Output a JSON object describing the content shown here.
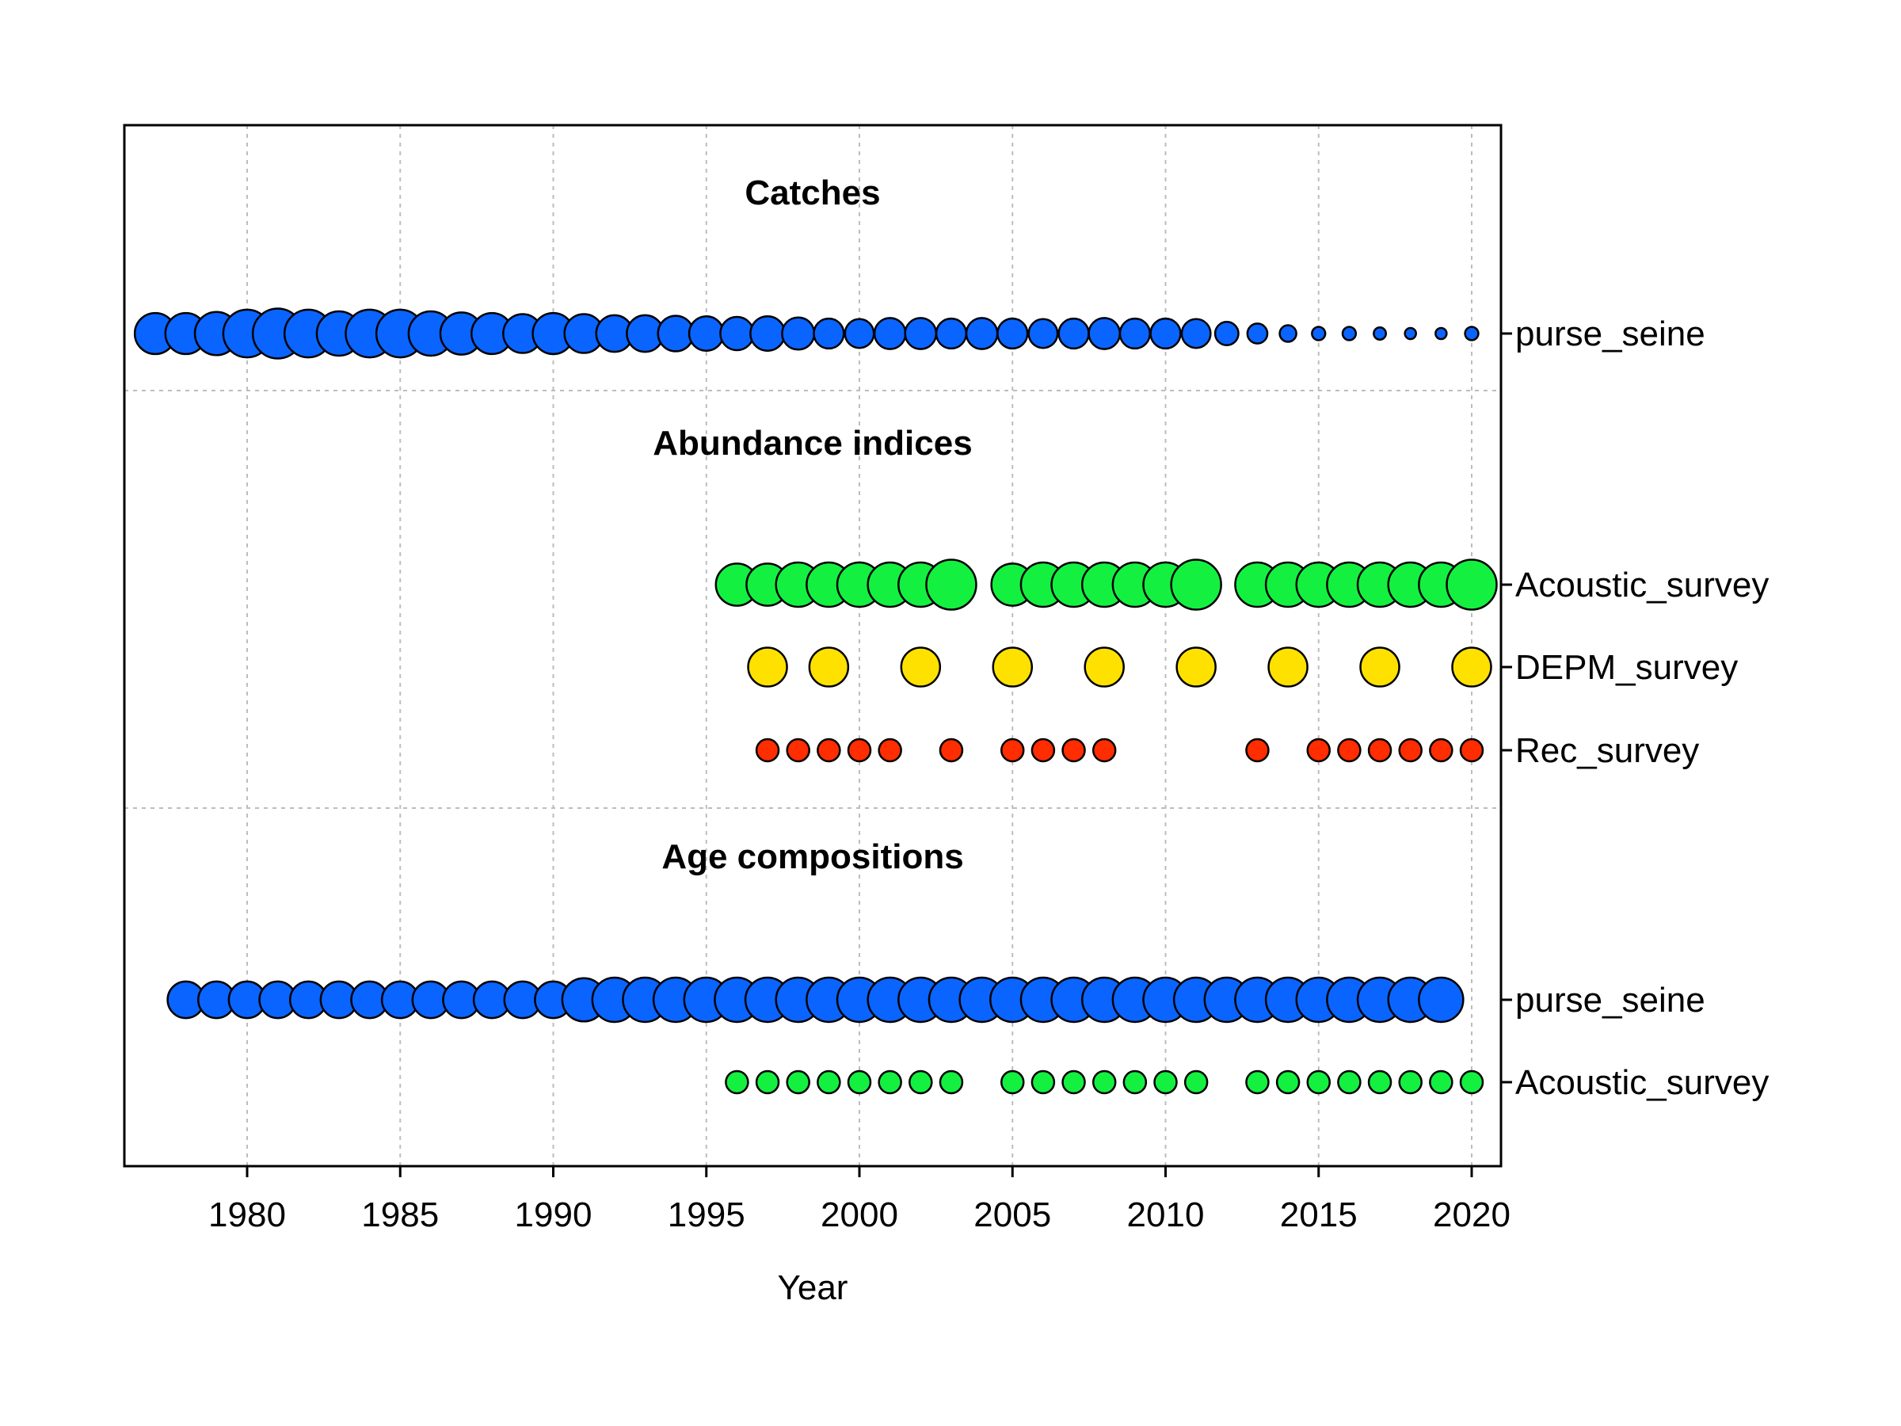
{
  "chart_data": {
    "type": "scatter",
    "xlabel": "Year",
    "xlim": [
      1976,
      2021
    ],
    "x_ticks": [
      1980,
      1985,
      1990,
      1995,
      2000,
      2005,
      2010,
      2015,
      2020
    ],
    "grid": true,
    "colors": {
      "blue": "#0a64ff",
      "green": "#14f040",
      "yellow": "#ffe100",
      "red": "#ff2d00"
    },
    "sections": [
      {
        "title": "Catches",
        "rows": [
          {
            "label": "purse_seine",
            "color": "#0a64ff",
            "points": [
              {
                "year": 1977,
                "size": 0.74
              },
              {
                "year": 1978,
                "size": 0.74
              },
              {
                "year": 1979,
                "size": 0.78
              },
              {
                "year": 1980,
                "size": 0.86
              },
              {
                "year": 1981,
                "size": 0.9
              },
              {
                "year": 1982,
                "size": 0.86
              },
              {
                "year": 1983,
                "size": 0.8
              },
              {
                "year": 1984,
                "size": 0.86
              },
              {
                "year": 1985,
                "size": 0.86
              },
              {
                "year": 1986,
                "size": 0.8
              },
              {
                "year": 1987,
                "size": 0.76
              },
              {
                "year": 1988,
                "size": 0.74
              },
              {
                "year": 1989,
                "size": 0.7
              },
              {
                "year": 1990,
                "size": 0.74
              },
              {
                "year": 1991,
                "size": 0.7
              },
              {
                "year": 1992,
                "size": 0.66
              },
              {
                "year": 1993,
                "size": 0.66
              },
              {
                "year": 1994,
                "size": 0.64
              },
              {
                "year": 1995,
                "size": 0.62
              },
              {
                "year": 1996,
                "size": 0.6
              },
              {
                "year": 1997,
                "size": 0.62
              },
              {
                "year": 1998,
                "size": 0.58
              },
              {
                "year": 1999,
                "size": 0.54
              },
              {
                "year": 2000,
                "size": 0.52
              },
              {
                "year": 2001,
                "size": 0.56
              },
              {
                "year": 2002,
                "size": 0.56
              },
              {
                "year": 2003,
                "size": 0.54
              },
              {
                "year": 2004,
                "size": 0.56
              },
              {
                "year": 2005,
                "size": 0.54
              },
              {
                "year": 2006,
                "size": 0.52
              },
              {
                "year": 2007,
                "size": 0.54
              },
              {
                "year": 2008,
                "size": 0.56
              },
              {
                "year": 2009,
                "size": 0.54
              },
              {
                "year": 2010,
                "size": 0.54
              },
              {
                "year": 2011,
                "size": 0.52
              },
              {
                "year": 2012,
                "size": 0.42
              },
              {
                "year": 2013,
                "size": 0.36
              },
              {
                "year": 2014,
                "size": 0.3
              },
              {
                "year": 2015,
                "size": 0.24
              },
              {
                "year": 2016,
                "size": 0.24
              },
              {
                "year": 2017,
                "size": 0.22
              },
              {
                "year": 2018,
                "size": 0.2
              },
              {
                "year": 2019,
                "size": 0.2
              },
              {
                "year": 2020,
                "size": 0.24
              }
            ]
          }
        ]
      },
      {
        "title": "Abundance indices",
        "rows": [
          {
            "label": "Acoustic_survey",
            "color": "#14f040",
            "points": [
              {
                "year": 1996,
                "size": 0.76
              },
              {
                "year": 1997,
                "size": 0.76
              },
              {
                "year": 1998,
                "size": 0.8
              },
              {
                "year": 1999,
                "size": 0.8
              },
              {
                "year": 2000,
                "size": 0.8
              },
              {
                "year": 2001,
                "size": 0.8
              },
              {
                "year": 2002,
                "size": 0.8
              },
              {
                "year": 2003,
                "size": 0.9
              },
              {
                "year": 2005,
                "size": 0.76
              },
              {
                "year": 2006,
                "size": 0.8
              },
              {
                "year": 2007,
                "size": 0.8
              },
              {
                "year": 2008,
                "size": 0.8
              },
              {
                "year": 2009,
                "size": 0.8
              },
              {
                "year": 2010,
                "size": 0.8
              },
              {
                "year": 2011,
                "size": 0.9
              },
              {
                "year": 2013,
                "size": 0.8
              },
              {
                "year": 2014,
                "size": 0.8
              },
              {
                "year": 2015,
                "size": 0.8
              },
              {
                "year": 2016,
                "size": 0.8
              },
              {
                "year": 2017,
                "size": 0.8
              },
              {
                "year": 2018,
                "size": 0.8
              },
              {
                "year": 2019,
                "size": 0.8
              },
              {
                "year": 2020,
                "size": 0.9
              }
            ]
          },
          {
            "label": "DEPM_survey",
            "color": "#ffe100",
            "points": [
              {
                "year": 1997,
                "size": 0.7
              },
              {
                "year": 1999,
                "size": 0.7
              },
              {
                "year": 2002,
                "size": 0.7
              },
              {
                "year": 2005,
                "size": 0.7
              },
              {
                "year": 2008,
                "size": 0.7
              },
              {
                "year": 2011,
                "size": 0.7
              },
              {
                "year": 2014,
                "size": 0.7
              },
              {
                "year": 2017,
                "size": 0.7
              },
              {
                "year": 2020,
                "size": 0.7
              }
            ]
          },
          {
            "label": "Rec_survey",
            "color": "#ff2d00",
            "points": [
              {
                "year": 1997,
                "size": 0.4
              },
              {
                "year": 1998,
                "size": 0.4
              },
              {
                "year": 1999,
                "size": 0.4
              },
              {
                "year": 2000,
                "size": 0.4
              },
              {
                "year": 2001,
                "size": 0.4
              },
              {
                "year": 2003,
                "size": 0.4
              },
              {
                "year": 2005,
                "size": 0.4
              },
              {
                "year": 2006,
                "size": 0.4
              },
              {
                "year": 2007,
                "size": 0.4
              },
              {
                "year": 2008,
                "size": 0.4
              },
              {
                "year": 2013,
                "size": 0.4
              },
              {
                "year": 2015,
                "size": 0.4
              },
              {
                "year": 2016,
                "size": 0.4
              },
              {
                "year": 2017,
                "size": 0.4
              },
              {
                "year": 2018,
                "size": 0.4
              },
              {
                "year": 2019,
                "size": 0.4
              },
              {
                "year": 2020,
                "size": 0.4
              }
            ]
          }
        ]
      },
      {
        "title": "Age compositions",
        "rows": [
          {
            "label": "purse_seine",
            "color": "#0a64ff",
            "points": [
              {
                "year": 1978,
                "size": 0.66
              },
              {
                "year": 1979,
                "size": 0.66
              },
              {
                "year": 1980,
                "size": 0.66
              },
              {
                "year": 1981,
                "size": 0.66
              },
              {
                "year": 1982,
                "size": 0.66
              },
              {
                "year": 1983,
                "size": 0.66
              },
              {
                "year": 1984,
                "size": 0.66
              },
              {
                "year": 1985,
                "size": 0.66
              },
              {
                "year": 1986,
                "size": 0.66
              },
              {
                "year": 1987,
                "size": 0.66
              },
              {
                "year": 1988,
                "size": 0.66
              },
              {
                "year": 1989,
                "size": 0.66
              },
              {
                "year": 1990,
                "size": 0.66
              },
              {
                "year": 1991,
                "size": 0.78
              },
              {
                "year": 1992,
                "size": 0.8
              },
              {
                "year": 1993,
                "size": 0.8
              },
              {
                "year": 1994,
                "size": 0.8
              },
              {
                "year": 1995,
                "size": 0.8
              },
              {
                "year": 1996,
                "size": 0.8
              },
              {
                "year": 1997,
                "size": 0.8
              },
              {
                "year": 1998,
                "size": 0.8
              },
              {
                "year": 1999,
                "size": 0.8
              },
              {
                "year": 2000,
                "size": 0.8
              },
              {
                "year": 2001,
                "size": 0.8
              },
              {
                "year": 2002,
                "size": 0.8
              },
              {
                "year": 2003,
                "size": 0.8
              },
              {
                "year": 2004,
                "size": 0.8
              },
              {
                "year": 2005,
                "size": 0.8
              },
              {
                "year": 2006,
                "size": 0.8
              },
              {
                "year": 2007,
                "size": 0.8
              },
              {
                "year": 2008,
                "size": 0.8
              },
              {
                "year": 2009,
                "size": 0.8
              },
              {
                "year": 2010,
                "size": 0.8
              },
              {
                "year": 2011,
                "size": 0.8
              },
              {
                "year": 2012,
                "size": 0.8
              },
              {
                "year": 2013,
                "size": 0.8
              },
              {
                "year": 2014,
                "size": 0.8
              },
              {
                "year": 2015,
                "size": 0.8
              },
              {
                "year": 2016,
                "size": 0.8
              },
              {
                "year": 2017,
                "size": 0.8
              },
              {
                "year": 2018,
                "size": 0.8
              },
              {
                "year": 2019,
                "size": 0.8
              }
            ]
          },
          {
            "label": "Acoustic_survey",
            "color": "#14f040",
            "points": [
              {
                "year": 1996,
                "size": 0.4
              },
              {
                "year": 1997,
                "size": 0.4
              },
              {
                "year": 1998,
                "size": 0.4
              },
              {
                "year": 1999,
                "size": 0.4
              },
              {
                "year": 2000,
                "size": 0.4
              },
              {
                "year": 2001,
                "size": 0.4
              },
              {
                "year": 2002,
                "size": 0.4
              },
              {
                "year": 2003,
                "size": 0.4
              },
              {
                "year": 2005,
                "size": 0.4
              },
              {
                "year": 2006,
                "size": 0.4
              },
              {
                "year": 2007,
                "size": 0.4
              },
              {
                "year": 2008,
                "size": 0.4
              },
              {
                "year": 2009,
                "size": 0.4
              },
              {
                "year": 2010,
                "size": 0.4
              },
              {
                "year": 2011,
                "size": 0.4
              },
              {
                "year": 2013,
                "size": 0.4
              },
              {
                "year": 2014,
                "size": 0.4
              },
              {
                "year": 2015,
                "size": 0.4
              },
              {
                "year": 2016,
                "size": 0.4
              },
              {
                "year": 2017,
                "size": 0.4
              },
              {
                "year": 2018,
                "size": 0.4
              },
              {
                "year": 2019,
                "size": 0.4
              },
              {
                "year": 2020,
                "size": 0.4
              }
            ]
          }
        ]
      }
    ]
  }
}
